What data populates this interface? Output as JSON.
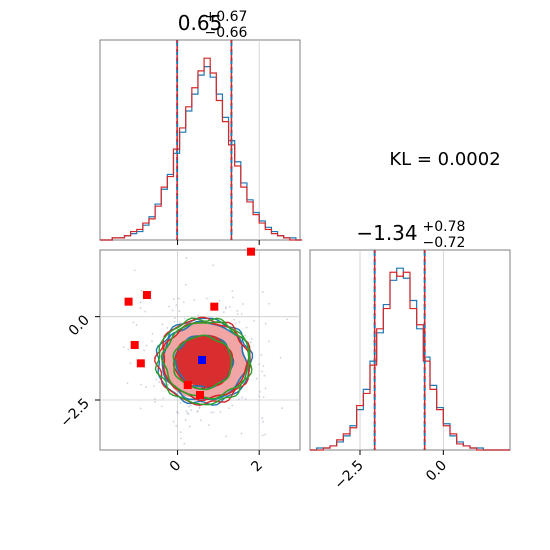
{
  "chart_data": [
    {
      "type": "histogram",
      "panel": "marginal-x",
      "title": {
        "median": "0.65",
        "upper": "+0.67",
        "lower": "−0.66"
      },
      "xlim": [
        -1.9,
        3.0
      ],
      "quantiles": [
        -0.01,
        0.65,
        1.32
      ],
      "x_ticks": [
        0,
        2
      ],
      "series": [
        {
          "name": "",
          "color": "#1f77b4",
          "bins": [
            [
              -1.9,
              0
            ],
            [
              -1.75,
              0
            ],
            [
              -1.6,
              1
            ],
            [
              -1.45,
              1
            ],
            [
              -1.3,
              2
            ],
            [
              -1.15,
              3
            ],
            [
              -1.0,
              4
            ],
            [
              -0.85,
              7
            ],
            [
              -0.7,
              11
            ],
            [
              -0.55,
              17
            ],
            [
              -0.4,
              24
            ],
            [
              -0.25,
              31
            ],
            [
              -0.1,
              41
            ],
            [
              0.05,
              51
            ],
            [
              0.2,
              61
            ],
            [
              0.35,
              69
            ],
            [
              0.5,
              78
            ],
            [
              0.65,
              82
            ],
            [
              0.8,
              77
            ],
            [
              0.95,
              69
            ],
            [
              1.1,
              58
            ],
            [
              1.25,
              47
            ],
            [
              1.4,
              37
            ],
            [
              1.55,
              27
            ],
            [
              1.7,
              19
            ],
            [
              1.85,
              13
            ],
            [
              2.0,
              9
            ],
            [
              2.15,
              6
            ],
            [
              2.3,
              4
            ],
            [
              2.45,
              2
            ],
            [
              2.6,
              1
            ],
            [
              2.75,
              1
            ],
            [
              2.9,
              0
            ]
          ]
        },
        {
          "name": "",
          "color": "#d62728",
          "bins": [
            [
              -1.9,
              0
            ],
            [
              -1.75,
              0
            ],
            [
              -1.6,
              1
            ],
            [
              -1.45,
              1
            ],
            [
              -1.3,
              2
            ],
            [
              -1.15,
              4
            ],
            [
              -1.0,
              5
            ],
            [
              -0.85,
              8
            ],
            [
              -0.7,
              10
            ],
            [
              -0.55,
              16
            ],
            [
              -0.4,
              25
            ],
            [
              -0.25,
              30
            ],
            [
              -0.1,
              43
            ],
            [
              0.05,
              53
            ],
            [
              0.2,
              63
            ],
            [
              0.35,
              72
            ],
            [
              0.5,
              80
            ],
            [
              0.65,
              86
            ],
            [
              0.8,
              79
            ],
            [
              0.95,
              66
            ],
            [
              1.1,
              56
            ],
            [
              1.25,
              45
            ],
            [
              1.4,
              35
            ],
            [
              1.55,
              25
            ],
            [
              1.7,
              18
            ],
            [
              1.85,
              12
            ],
            [
              2.0,
              8
            ],
            [
              2.15,
              5
            ],
            [
              2.3,
              3
            ],
            [
              2.45,
              2
            ],
            [
              2.6,
              1
            ],
            [
              2.75,
              0
            ],
            [
              2.9,
              0
            ]
          ]
        }
      ]
    },
    {
      "type": "contour",
      "panel": "joint",
      "xlim": [
        -1.9,
        3.0
      ],
      "ylim": [
        -4.0,
        2.0
      ],
      "x_ticks": [
        0,
        2
      ],
      "y_ticks": [
        0.0,
        -2.5
      ],
      "center": [
        0.65,
        -1.34
      ],
      "sigma": [
        0.66,
        0.75
      ],
      "blue_marker": [
        0.6,
        -1.3
      ],
      "red_markers": [
        [
          -1.2,
          0.45
        ],
        [
          -0.75,
          0.65
        ],
        [
          -1.05,
          -0.85
        ],
        [
          -0.9,
          -1.4
        ],
        [
          0.25,
          -2.05
        ],
        [
          0.55,
          -2.35
        ],
        [
          1.8,
          1.95
        ],
        [
          0.9,
          0.3
        ]
      ],
      "contour_colors": [
        "#1f77b4",
        "#d62728",
        "#2ca02c"
      ]
    },
    {
      "type": "histogram",
      "panel": "marginal-y",
      "title": {
        "median": "−1.34",
        "upper": "+0.78",
        "lower": "−0.72"
      },
      "xlim": [
        -4.0,
        2.0
      ],
      "quantiles": [
        -2.06,
        -1.34,
        -0.56
      ],
      "x_ticks": [
        -2.5,
        0.0
      ],
      "series": [
        {
          "name": "",
          "color": "#1f77b4",
          "bins": [
            [
              -4.0,
              0
            ],
            [
              -3.8,
              1
            ],
            [
              -3.6,
              1
            ],
            [
              -3.4,
              2
            ],
            [
              -3.2,
              4
            ],
            [
              -3.0,
              7
            ],
            [
              -2.8,
              12
            ],
            [
              -2.6,
              20
            ],
            [
              -2.4,
              30
            ],
            [
              -2.2,
              44
            ],
            [
              -2.0,
              58
            ],
            [
              -1.8,
              72
            ],
            [
              -1.6,
              84
            ],
            [
              -1.4,
              90
            ],
            [
              -1.2,
              85
            ],
            [
              -1.0,
              74
            ],
            [
              -0.8,
              60
            ],
            [
              -0.6,
              46
            ],
            [
              -0.4,
              32
            ],
            [
              -0.2,
              21
            ],
            [
              0.0,
              13
            ],
            [
              0.2,
              7
            ],
            [
              0.4,
              4
            ],
            [
              0.6,
              2
            ],
            [
              0.8,
              1
            ],
            [
              1.0,
              1
            ],
            [
              1.2,
              0
            ],
            [
              1.4,
              0
            ],
            [
              1.6,
              0
            ],
            [
              1.8,
              0
            ]
          ]
        },
        {
          "name": "",
          "color": "#d62728",
          "bins": [
            [
              -4.0,
              0
            ],
            [
              -3.8,
              0
            ],
            [
              -3.6,
              1
            ],
            [
              -3.4,
              2
            ],
            [
              -3.2,
              5
            ],
            [
              -3.0,
              8
            ],
            [
              -2.8,
              11
            ],
            [
              -2.6,
              22
            ],
            [
              -2.4,
              28
            ],
            [
              -2.2,
              42
            ],
            [
              -2.0,
              60
            ],
            [
              -1.8,
              70
            ],
            [
              -1.6,
              88
            ],
            [
              -1.4,
              86
            ],
            [
              -1.2,
              88
            ],
            [
              -1.0,
              70
            ],
            [
              -0.8,
              62
            ],
            [
              -0.6,
              44
            ],
            [
              -0.4,
              30
            ],
            [
              -0.2,
              20
            ],
            [
              0.0,
              12
            ],
            [
              0.2,
              8
            ],
            [
              0.4,
              3
            ],
            [
              0.6,
              2
            ],
            [
              0.8,
              1
            ],
            [
              1.0,
              0
            ],
            [
              1.2,
              0
            ],
            [
              1.4,
              0
            ],
            [
              1.6,
              0
            ],
            [
              1.8,
              0
            ]
          ]
        }
      ]
    }
  ],
  "kl_label": "KL = 0.0002"
}
